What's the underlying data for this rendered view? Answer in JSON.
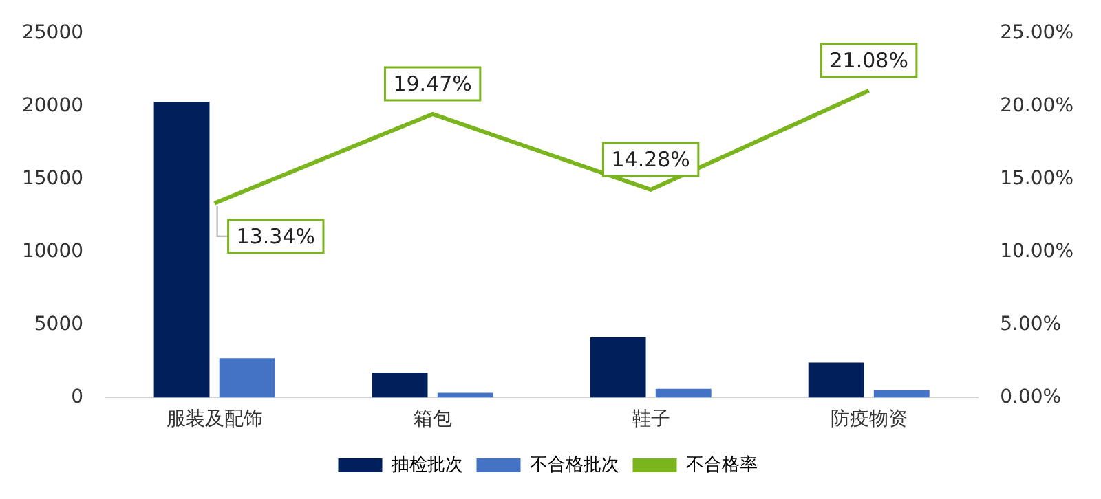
{
  "chart_data": {
    "type": "bar",
    "categories": [
      "服装及配饰",
      "箱包",
      "鞋子",
      "防疫物资"
    ],
    "series": [
      {
        "name": "抽检批次",
        "color": "#001f5b",
        "values": [
          20300,
          1720,
          4130,
          2400
        ]
      },
      {
        "name": "不合格批次",
        "color": "#4472c4",
        "values": [
          2700,
          330,
          600,
          500
        ]
      },
      {
        "name": "不合格率",
        "type": "line",
        "axis": "y2",
        "color": "#7ab51d",
        "values": [
          13.34,
          19.47,
          14.28,
          21.08
        ],
        "value_labels": [
          "13.34%",
          "19.47%",
          "14.28%",
          "21.08%"
        ]
      }
    ],
    "ylim": [
      0,
      25000
    ],
    "yticks": [
      0,
      5000,
      10000,
      15000,
      20000,
      25000
    ],
    "y2lim": [
      0,
      25
    ],
    "y2ticks": [
      {
        "value": 0,
        "label": "0.00%"
      },
      {
        "value": 5,
        "label": "5.00%"
      },
      {
        "value": 10,
        "label": "10.00%"
      },
      {
        "value": 15,
        "label": "15.00%"
      },
      {
        "value": 20,
        "label": "20.00%"
      },
      {
        "value": 25,
        "label": "25.00%"
      }
    ],
    "grid": false,
    "legend": "bottom",
    "marker": "none"
  }
}
